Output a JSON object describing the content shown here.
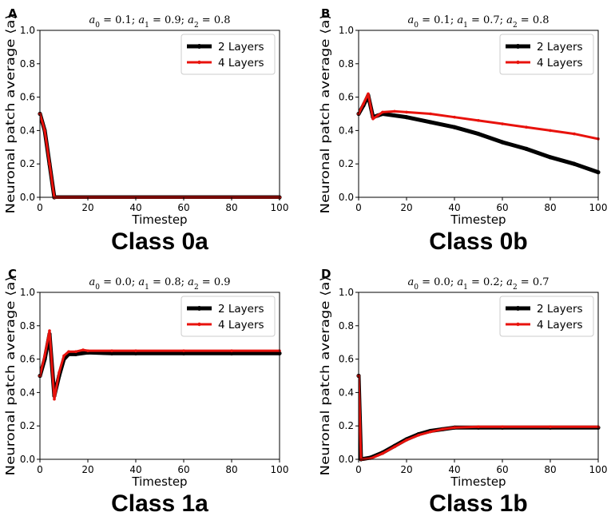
{
  "colors": {
    "series_2_layers": "#000000",
    "series_4_layers": "#e8120c",
    "axis": "#000000",
    "background": "#ffffff"
  },
  "chart_data": [
    {
      "type": "line",
      "panel": "A",
      "title": "a0 = 0.1; a1 = 0.9; a2 = 0.8",
      "title_parts": [
        [
          "a",
          "0",
          " = 0.1; "
        ],
        [
          "a",
          "1",
          " = 0.9; "
        ],
        [
          "a",
          "2",
          " = 0.8"
        ]
      ],
      "class_label": "Class 0a",
      "xlabel": "Timestep",
      "ylabel": "Neuronal patch average ⟨a⟩",
      "xlim": [
        0,
        100
      ],
      "ylim": [
        0,
        1.0
      ],
      "xticks": [
        "0",
        "20",
        "40",
        "60",
        "80",
        "100"
      ],
      "yticks": [
        "0.0",
        "0.2",
        "0.4",
        "0.6",
        "0.8",
        "1.0"
      ],
      "legend": "top-right",
      "series": [
        {
          "name": "2 Layers",
          "points": [
            [
              0,
              0.5
            ],
            [
              2,
              0.4
            ],
            [
              4,
              0.2
            ],
            [
              6,
              0.0
            ],
            [
              100,
              0.0
            ]
          ]
        },
        {
          "name": "4 Layers",
          "points": [
            [
              0,
              0.5
            ],
            [
              2,
              0.4
            ],
            [
              4,
              0.2
            ],
            [
              6,
              0.0
            ],
            [
              100,
              0.0
            ]
          ]
        }
      ]
    },
    {
      "type": "line",
      "panel": "B",
      "title": "a0 = 0.1; a1 = 0.7; a2 = 0.8",
      "title_parts": [
        [
          "a",
          "0",
          " = 0.1; "
        ],
        [
          "a",
          "1",
          " = 0.7; "
        ],
        [
          "a",
          "2",
          " = 0.8"
        ]
      ],
      "class_label": "Class 0b",
      "xlabel": "Timestep",
      "ylabel": "Neuronal patch average ⟨a⟩",
      "xlim": [
        0,
        100
      ],
      "ylim": [
        0,
        1.0
      ],
      "xticks": [
        "0",
        "20",
        "40",
        "60",
        "80",
        "100"
      ],
      "yticks": [
        "0.0",
        "0.2",
        "0.4",
        "0.6",
        "0.8",
        "1.0"
      ],
      "legend": "top-right",
      "series": [
        {
          "name": "2 Layers",
          "points": [
            [
              0,
              0.5
            ],
            [
              2,
              0.55
            ],
            [
              4,
              0.61
            ],
            [
              6,
              0.48
            ],
            [
              8,
              0.49
            ],
            [
              10,
              0.5
            ],
            [
              20,
              0.48
            ],
            [
              30,
              0.45
            ],
            [
              40,
              0.42
            ],
            [
              50,
              0.38
            ],
            [
              60,
              0.33
            ],
            [
              70,
              0.29
            ],
            [
              80,
              0.24
            ],
            [
              90,
              0.2
            ],
            [
              100,
              0.15
            ]
          ]
        },
        {
          "name": "4 Layers",
          "points": [
            [
              0,
              0.5
            ],
            [
              2,
              0.56
            ],
            [
              4,
              0.62
            ],
            [
              6,
              0.47
            ],
            [
              8,
              0.49
            ],
            [
              10,
              0.51
            ],
            [
              15,
              0.515
            ],
            [
              20,
              0.51
            ],
            [
              30,
              0.5
            ],
            [
              40,
              0.48
            ],
            [
              50,
              0.46
            ],
            [
              60,
              0.44
            ],
            [
              70,
              0.42
            ],
            [
              80,
              0.4
            ],
            [
              90,
              0.38
            ],
            [
              100,
              0.35
            ]
          ]
        }
      ]
    },
    {
      "type": "line",
      "panel": "C",
      "title": "a0 = 0.0; a1 = 0.8; a2 = 0.9",
      "title_parts": [
        [
          "a",
          "0",
          " = 0.0; "
        ],
        [
          "a",
          "1",
          " = 0.8; "
        ],
        [
          "a",
          "2",
          " = 0.9"
        ]
      ],
      "class_label": "Class 1a",
      "xlabel": "Timestep",
      "ylabel": "Neuronal patch average ⟨a⟩",
      "xlim": [
        0,
        100
      ],
      "ylim": [
        0,
        1.0
      ],
      "xticks": [
        "0",
        "20",
        "40",
        "60",
        "80",
        "100"
      ],
      "yticks": [
        "0.0",
        "0.2",
        "0.4",
        "0.6",
        "0.8",
        "1.0"
      ],
      "legend": "top-right",
      "series": [
        {
          "name": "2 Layers",
          "points": [
            [
              0,
              0.5
            ],
            [
              2,
              0.6
            ],
            [
              4,
              0.75
            ],
            [
              6,
              0.38
            ],
            [
              8,
              0.5
            ],
            [
              10,
              0.6
            ],
            [
              12,
              0.63
            ],
            [
              15,
              0.63
            ],
            [
              20,
              0.64
            ],
            [
              30,
              0.635
            ],
            [
              40,
              0.635
            ],
            [
              60,
              0.635
            ],
            [
              80,
              0.635
            ],
            [
              100,
              0.635
            ]
          ]
        },
        {
          "name": "4 Layers",
          "points": [
            [
              0,
              0.5
            ],
            [
              2,
              0.62
            ],
            [
              4,
              0.77
            ],
            [
              6,
              0.36
            ],
            [
              8,
              0.52
            ],
            [
              10,
              0.62
            ],
            [
              12,
              0.645
            ],
            [
              15,
              0.645
            ],
            [
              18,
              0.655
            ],
            [
              20,
              0.65
            ],
            [
              30,
              0.65
            ],
            [
              40,
              0.65
            ],
            [
              60,
              0.65
            ],
            [
              80,
              0.65
            ],
            [
              100,
              0.65
            ]
          ]
        }
      ]
    },
    {
      "type": "line",
      "panel": "D",
      "title": "a0 = 0.0; a1 = 0.2; a2 = 0.7",
      "title_parts": [
        [
          "a",
          "0",
          " = 0.0; "
        ],
        [
          "a",
          "1",
          " = 0.2; "
        ],
        [
          "a",
          "2",
          " = 0.7"
        ]
      ],
      "class_label": "Class 1b",
      "xlabel": "Timestep",
      "ylabel": "Neuronal patch average ⟨a⟩",
      "xlim": [
        0,
        100
      ],
      "ylim": [
        0,
        1.0
      ],
      "xticks": [
        "0",
        "20",
        "40",
        "60",
        "80",
        "100"
      ],
      "yticks": [
        "0.0",
        "0.2",
        "0.4",
        "0.6",
        "0.8",
        "1.0"
      ],
      "legend": "top-right",
      "series": [
        {
          "name": "2 Layers",
          "points": [
            [
              0,
              0.5
            ],
            [
              1,
              0.0
            ],
            [
              5,
              0.01
            ],
            [
              10,
              0.04
            ],
            [
              15,
              0.08
            ],
            [
              20,
              0.12
            ],
            [
              25,
              0.15
            ],
            [
              30,
              0.17
            ],
            [
              35,
              0.18
            ],
            [
              40,
              0.19
            ],
            [
              50,
              0.19
            ],
            [
              60,
              0.19
            ],
            [
              80,
              0.19
            ],
            [
              100,
              0.19
            ]
          ]
        },
        {
          "name": "4 Layers",
          "points": [
            [
              0,
              0.5
            ],
            [
              1,
              0.0
            ],
            [
              5,
              0.005
            ],
            [
              10,
              0.035
            ],
            [
              15,
              0.075
            ],
            [
              20,
              0.115
            ],
            [
              25,
              0.145
            ],
            [
              30,
              0.165
            ],
            [
              35,
              0.18
            ],
            [
              40,
              0.19
            ],
            [
              50,
              0.195
            ],
            [
              60,
              0.195
            ],
            [
              80,
              0.195
            ],
            [
              100,
              0.195
            ]
          ]
        }
      ]
    }
  ]
}
